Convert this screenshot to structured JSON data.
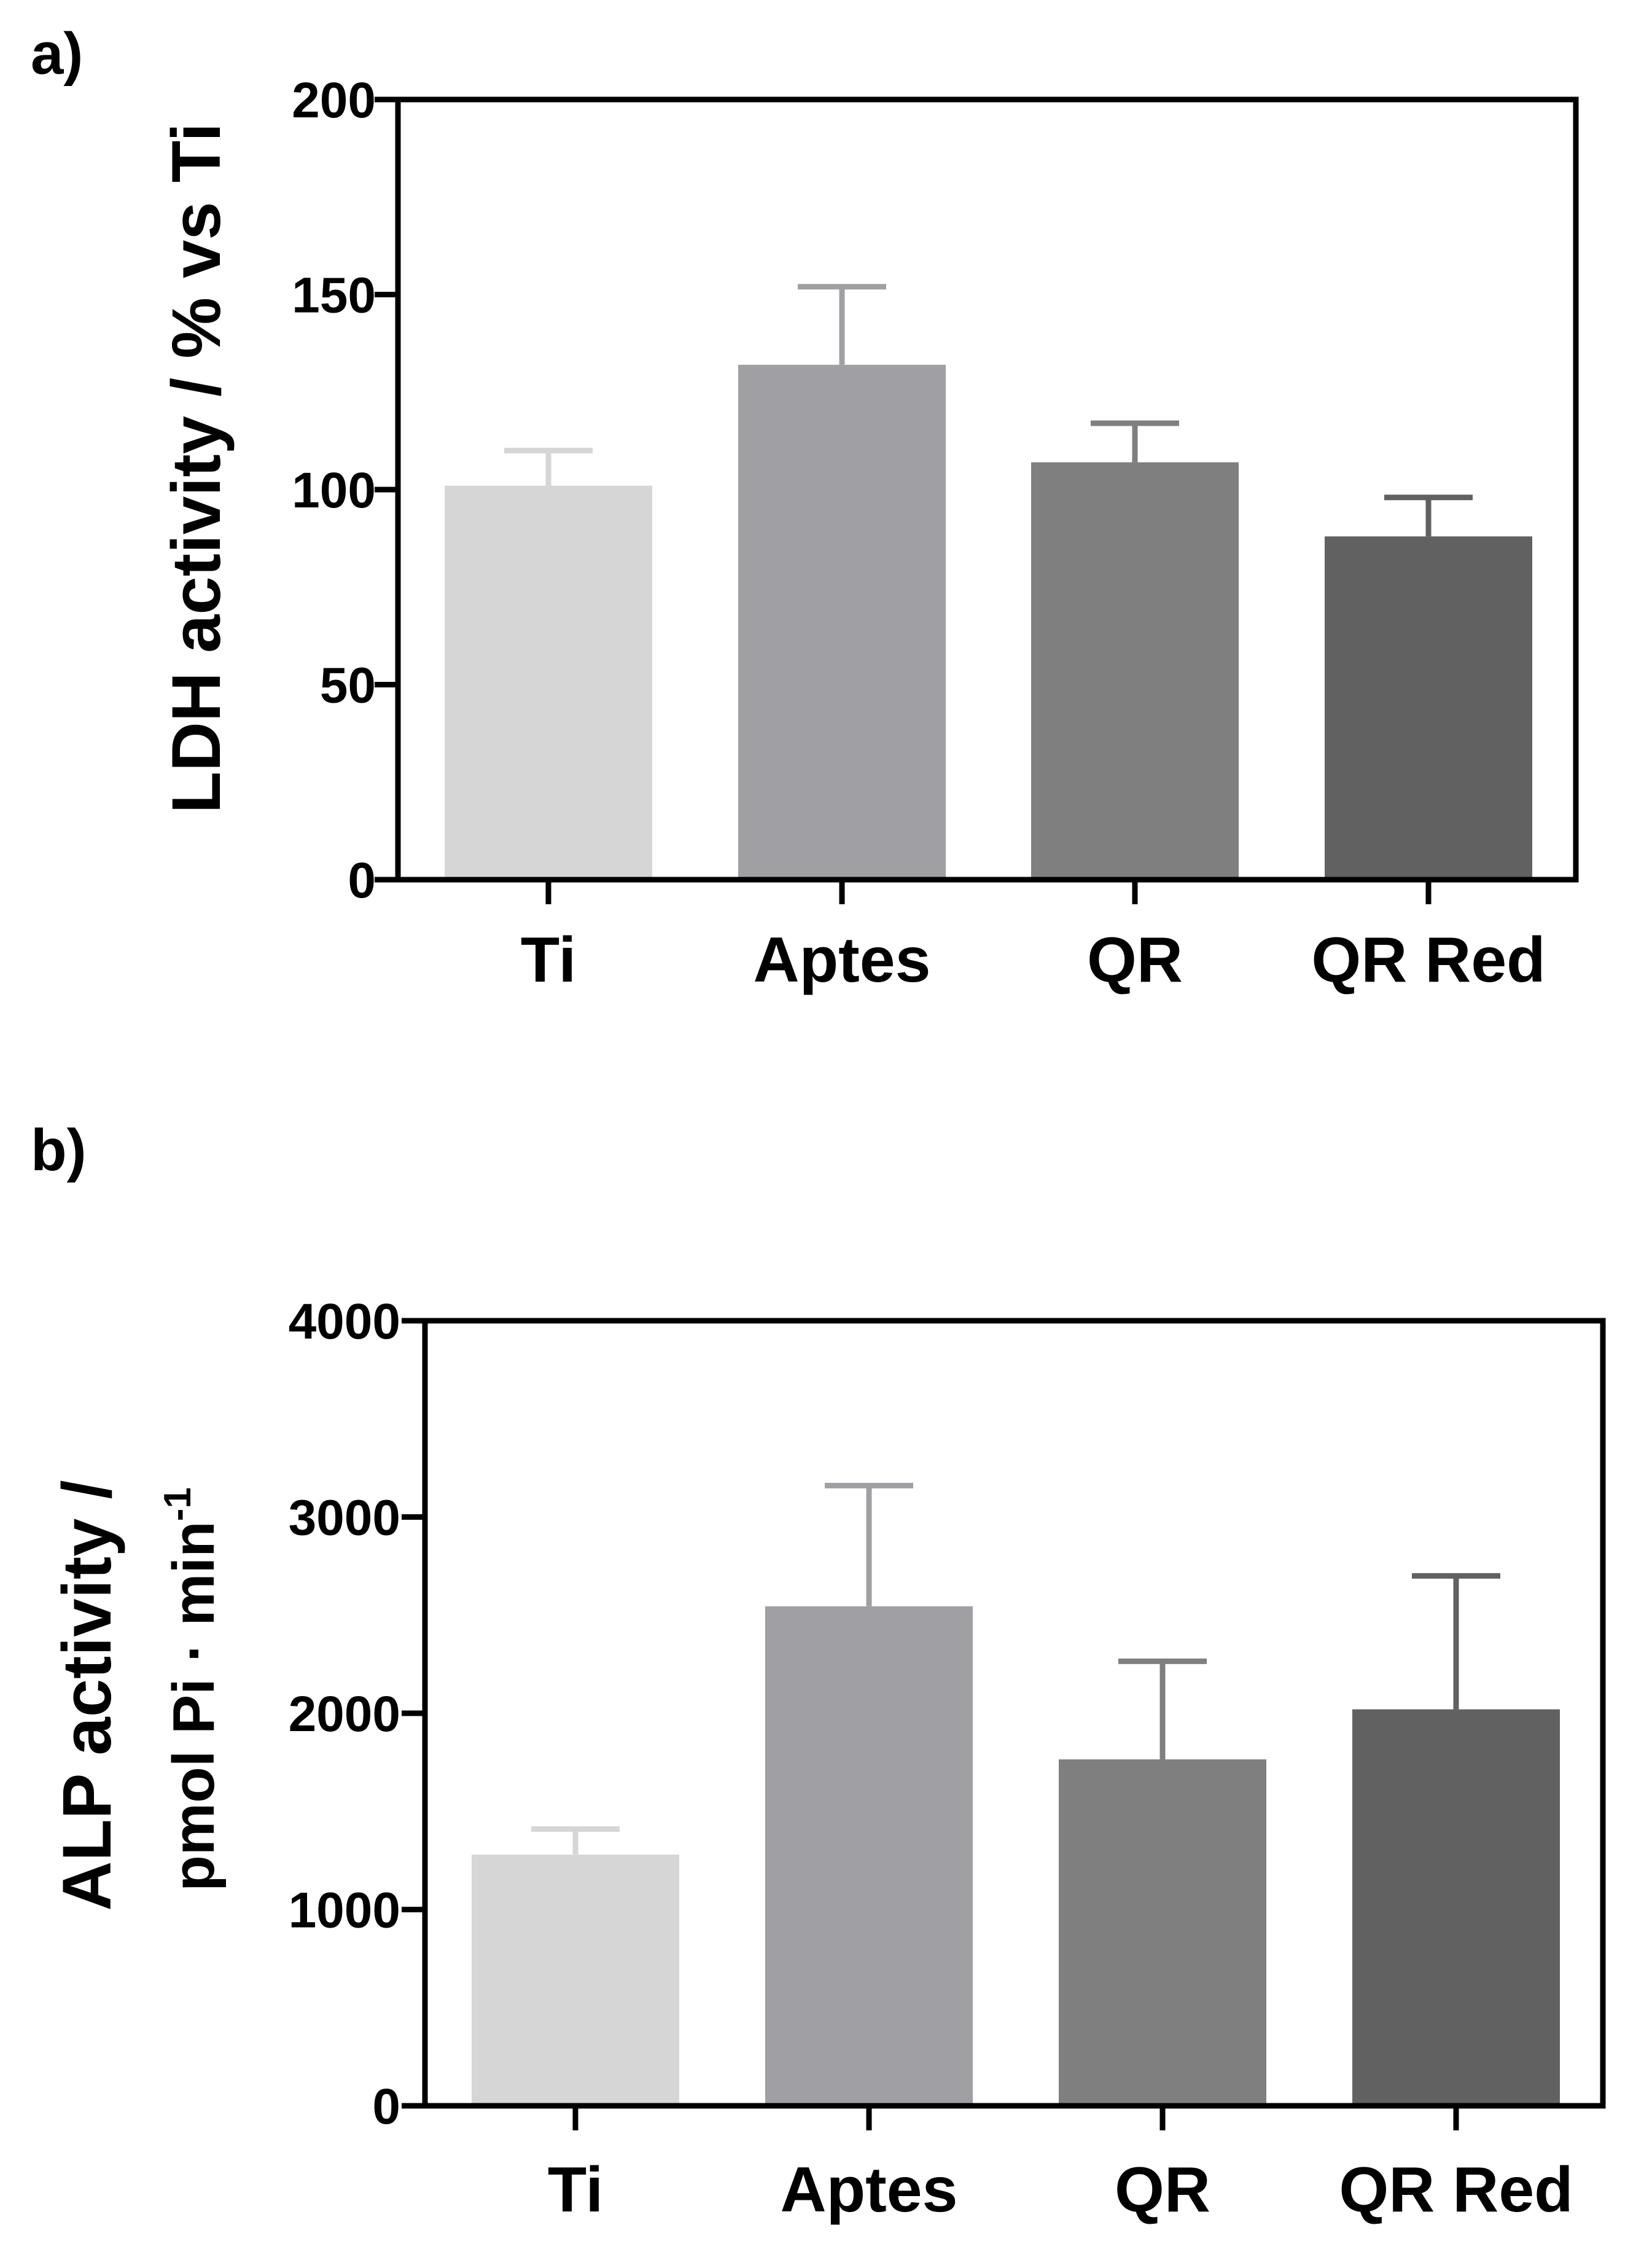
{
  "colors": {
    "background": "#ffffff",
    "axis": "#000000"
  },
  "chart_data": [
    {
      "type": "bar",
      "panel_label": "a)",
      "ylabel": "LDH activity / % vs Ti",
      "ylim": [
        0,
        200
      ],
      "yticks": [
        0,
        50,
        100,
        150,
        200
      ],
      "categories": [
        "Ti",
        "Aptes",
        "QR",
        "QR Red"
      ],
      "values": [
        101,
        132,
        107,
        88
      ],
      "errors": [
        9,
        20,
        10,
        10
      ],
      "bar_colors": [
        "#d6d6d6",
        "#a0a0a4",
        "#7f7f7f",
        "#616161"
      ],
      "error_colors": [
        "#d6d6d6",
        "#a0a0a4",
        "#7f7f7f",
        "#616161"
      ]
    },
    {
      "type": "bar",
      "panel_label": "b)",
      "ylabel": "ALP activity /",
      "ylabel_line2": "pmol Pi · min",
      "ylabel_line2_superscript": "-1",
      "ylim": [
        0,
        4000
      ],
      "yticks": [
        0,
        1000,
        2000,
        3000,
        4000
      ],
      "categories": [
        "Ti",
        "Aptes",
        "QR",
        "QR Red"
      ],
      "values": [
        1280,
        2545,
        1765,
        2020
      ],
      "errors": [
        130,
        615,
        500,
        680
      ],
      "bar_colors": [
        "#d6d6d6",
        "#a0a0a4",
        "#7f7f7f",
        "#616161"
      ],
      "error_colors": [
        "#d6d6d6",
        "#a0a0a4",
        "#7f7f7f",
        "#616161"
      ]
    }
  ]
}
